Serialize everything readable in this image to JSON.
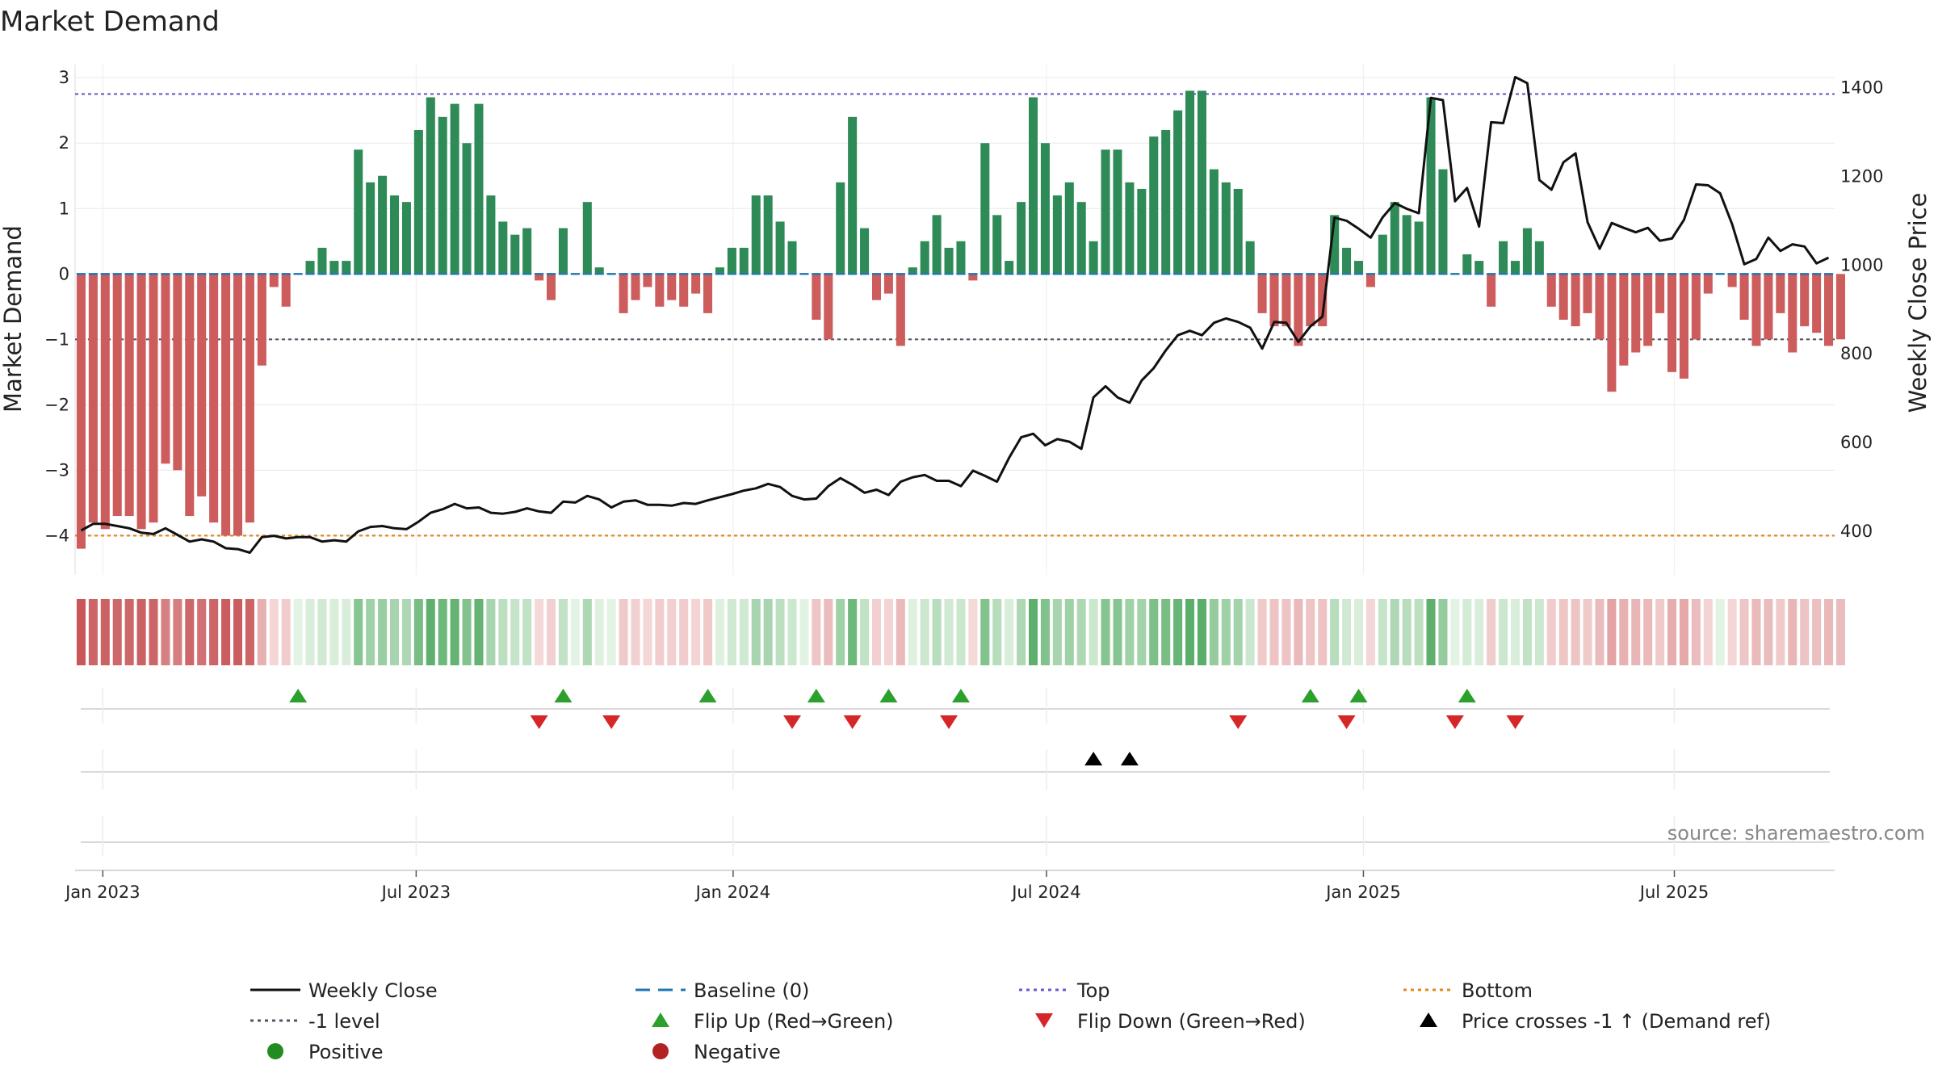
{
  "chart_data": {
    "type": "bar",
    "title": "Market Demand",
    "ylabel_left": "Market Demand",
    "ylabel_right": "Weekly Close Price",
    "source": "source: sharemaestro.com",
    "ylim_left": [
      -4.6,
      3.2
    ],
    "ylim_right": [
      300,
      1450
    ],
    "yticks_left": [
      3,
      2,
      1,
      0,
      -1,
      -2,
      -3,
      -4
    ],
    "ytick_labels_left": [
      "3",
      "2",
      "1",
      "0",
      "−1",
      "−2",
      "−3",
      "−4"
    ],
    "yticks_right": [
      1400,
      1200,
      1000,
      800,
      600,
      400
    ],
    "ytick_labels_right": [
      "1400",
      "1200",
      "1000",
      "800",
      "600",
      "400"
    ],
    "x_start": "2022-12-23",
    "weeks": 146,
    "x_ticks": [
      {
        "label": "Jan 2023",
        "week": 2.3
      },
      {
        "label": "Jul 2023",
        "week": 28.3
      },
      {
        "label": "Jan 2024",
        "week": 54.6
      },
      {
        "label": "Jul 2024",
        "week": 80.6
      },
      {
        "label": "Jan 2025",
        "week": 106.9
      },
      {
        "label": "Jul 2025",
        "week": 132.7
      }
    ],
    "levels": {
      "top": 2.75,
      "bottom": -4.0,
      "minus_one": -1.0,
      "baseline": 0
    },
    "colors": {
      "positive_bar": "#2e8b57",
      "negative_bar": "#cd5c5c",
      "close_line": "#111111",
      "baseline": "#1f77b4",
      "top": "#6a5acd",
      "bottom": "#e08a1e",
      "minus_one": "#555566",
      "flip_up": "#2ca02c",
      "flip_down": "#d62728",
      "cross": "#000000",
      "positive_dot": "#228b22",
      "negative_dot": "#b22222"
    },
    "demand": [
      -4.2,
      -3.8,
      -3.9,
      -3.7,
      -3.7,
      -3.9,
      -3.8,
      -2.9,
      -3.0,
      -3.7,
      -3.4,
      -3.8,
      -4.0,
      -4.0,
      -3.8,
      -1.4,
      -0.2,
      -0.5,
      0.0,
      0.2,
      0.4,
      0.2,
      0.2,
      1.9,
      1.4,
      1.5,
      1.2,
      1.1,
      2.2,
      2.7,
      2.4,
      2.6,
      2.0,
      2.6,
      1.2,
      0.8,
      0.6,
      0.7,
      -0.1,
      -0.4,
      0.7,
      0.0,
      1.1,
      0.1,
      0.0,
      -0.6,
      -0.4,
      -0.2,
      -0.5,
      -0.4,
      -0.5,
      -0.3,
      -0.6,
      0.1,
      0.4,
      0.4,
      1.2,
      1.2,
      0.8,
      0.5,
      0.0,
      -0.7,
      -1.0,
      1.4,
      2.4,
      0.7,
      -0.4,
      -0.3,
      -1.1,
      0.1,
      0.5,
      0.9,
      0.4,
      0.5,
      -0.1,
      2.0,
      0.9,
      0.2,
      1.1,
      2.7,
      2.0,
      1.2,
      1.4,
      1.1,
      0.5,
      1.9,
      1.9,
      1.4,
      1.3,
      2.1,
      2.2,
      2.5,
      2.8,
      2.8,
      1.6,
      1.4,
      1.3,
      0.5,
      -0.6,
      -0.8,
      -0.8,
      -1.1,
      -0.8,
      -0.8,
      0.9,
      0.4,
      0.2,
      -0.2,
      0.6,
      1.1,
      0.9,
      0.8,
      2.7,
      1.6,
      0.0,
      0.3,
      0.2,
      -0.5,
      0.5,
      0.2,
      0.7,
      0.5,
      -0.5,
      -0.7,
      -0.8,
      -0.6,
      -1.0,
      -1.8,
      -1.4,
      -1.2,
      -1.1,
      -0.6,
      -1.5,
      -1.6,
      -1.0,
      -0.3,
      0.0,
      -0.2,
      -0.7,
      -1.1,
      -1.0,
      -0.6,
      -1.2,
      -0.8,
      -0.9,
      -1.1,
      -1.0
    ],
    "close": [
      400,
      415,
      415,
      410,
      405,
      395,
      392,
      405,
      390,
      375,
      380,
      375,
      360,
      358,
      350,
      385,
      388,
      382,
      385,
      385,
      375,
      378,
      375,
      398,
      408,
      410,
      405,
      403,
      420,
      440,
      448,
      460,
      450,
      452,
      440,
      438,
      442,
      450,
      443,
      440,
      465,
      463,
      478,
      470,
      452,
      465,
      468,
      458,
      458,
      456,
      462,
      460,
      468,
      475,
      482,
      490,
      495,
      505,
      498,
      478,
      470,
      472,
      500,
      518,
      503,
      485,
      492,
      480,
      510,
      520,
      525,
      512,
      512,
      500,
      535,
      523,
      510,
      564,
      610,
      618,
      592,
      606,
      600,
      584,
      700,
      725,
      700,
      688,
      738,
      766,
      806,
      840,
      850,
      840,
      868,
      878,
      870,
      857,
      810,
      870,
      868,
      825,
      860,
      882,
      1105,
      1098,
      1080,
      1060,
      1106,
      1138,
      1125,
      1115,
      1375,
      1370,
      1142,
      1172,
      1085,
      1320,
      1318,
      1422,
      1408,
      1190,
      1168,
      1230,
      1250,
      1095,
      1035,
      1093,
      1082,
      1072,
      1082,
      1053,
      1058,
      1100,
      1180,
      1178,
      1160,
      1090,
      1000,
      1012,
      1060,
      1030,
      1045,
      1040,
      1002,
      1015
    ],
    "flip_up_weeks": [
      18,
      40,
      52,
      61,
      67,
      73,
      102,
      106,
      115
    ],
    "flip_down_weeks": [
      38,
      44,
      59,
      64,
      72,
      96,
      105,
      114,
      119
    ],
    "cross_weeks": [
      84,
      87
    ]
  },
  "legend": [
    {
      "label": "Weekly Close",
      "marker": "line"
    },
    {
      "label": "Baseline (0)",
      "marker": "dash"
    },
    {
      "label": "Top",
      "marker": "dot-line-top"
    },
    {
      "label": "Bottom",
      "marker": "dot-line-bottom"
    },
    {
      "label": "-1 level",
      "marker": "dot-line-minus"
    },
    {
      "label": "Flip Up (Red→Green)",
      "marker": "tri-up-green"
    },
    {
      "label": "Flip Down (Green→Red)",
      "marker": "tri-down-red"
    },
    {
      "label": "Price crosses -1 ↑ (Demand ref)",
      "marker": "tri-up-black"
    },
    {
      "label": "Positive",
      "marker": "dot-green"
    },
    {
      "label": "Negative",
      "marker": "dot-red"
    }
  ]
}
